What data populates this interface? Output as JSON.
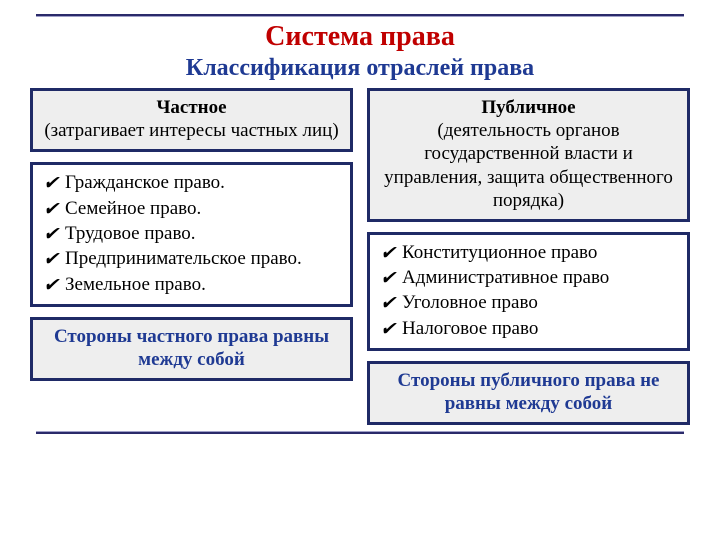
{
  "colors": {
    "title": "#c00000",
    "subtitle": "#1f3a93",
    "border": "#1f2a66",
    "box_bg": "#eeeeee",
    "page_bg": "#ffffff",
    "text": "#000000"
  },
  "title": "Система права",
  "subtitle": "Классификация отраслей права",
  "left": {
    "header_bold": "Частное",
    "header_rest": "(затрагивает интересы частных лиц)",
    "items": [
      " Гражданское право.",
      " Семейное право.",
      " Трудовое право.",
      " Предпринимательское право.",
      "Земельное право."
    ],
    "footer": "Стороны частного права равны между собой"
  },
  "right": {
    "header_bold": "Публичное",
    "header_rest": "(деятельность органов государственной власти и управления, защита общественного порядка)",
    "items": [
      "Конституционное право",
      "Административное право",
      "Уголовное право",
      "Налоговое право"
    ],
    "footer": "Стороны публичного права не равны между собой"
  },
  "check_glyph": "✔"
}
